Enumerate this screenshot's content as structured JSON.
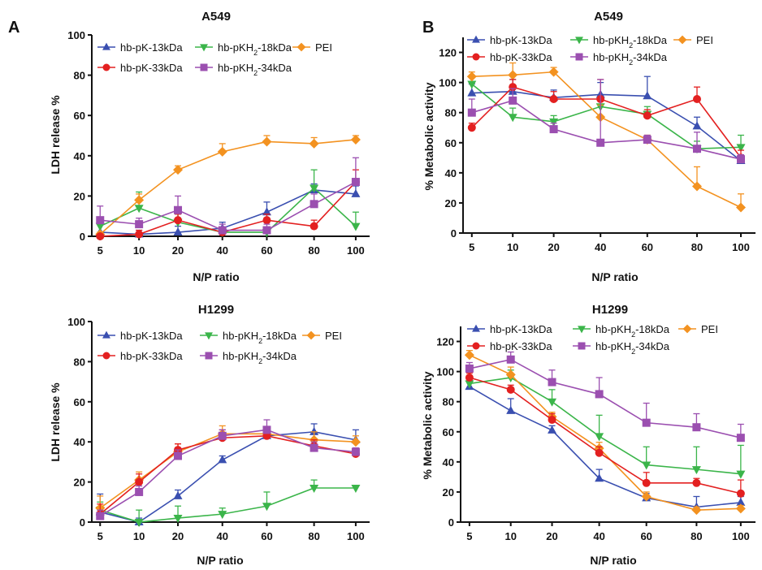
{
  "panel_letters": [
    "A",
    "B"
  ],
  "chart_data": [
    {
      "type": "line",
      "title": "A549",
      "xlabel": "N/P ratio",
      "ylabel": "LDH release %",
      "categories": [
        "5",
        "10",
        "20",
        "40",
        "60",
        "80",
        "100"
      ],
      "ylim": [
        0,
        100
      ],
      "yticks": [
        0,
        20,
        40,
        60,
        80,
        100
      ],
      "legend_columns": 3,
      "series": [
        {
          "name": "hb-pK-13kDa",
          "color": "#3a4fb0",
          "marker": "triangle-up",
          "values": [
            2,
            1,
            2,
            4,
            12,
            23,
            21
          ],
          "err": [
            4,
            2,
            3,
            3,
            5,
            3,
            4
          ]
        },
        {
          "name": "hb-pKH₂-18kDa",
          "color": "#3bb54a",
          "marker": "triangle-down",
          "values": [
            5,
            14,
            7,
            2,
            2,
            24,
            5
          ],
          "err": [
            2,
            8,
            4,
            2,
            2,
            9,
            7
          ]
        },
        {
          "name": "PEI",
          "color": "#f39220",
          "marker": "diamond",
          "values": [
            1,
            18,
            33,
            42,
            47,
            46,
            48
          ],
          "err": [
            1,
            3,
            2,
            4,
            3,
            3,
            2
          ]
        },
        {
          "name": "hb-pK-33kDa",
          "color": "#e32020",
          "marker": "circle",
          "values": [
            0,
            1,
            8,
            2,
            8,
            5,
            27
          ],
          "err": [
            1,
            2,
            3,
            2,
            3,
            3,
            6
          ]
        },
        {
          "name": "hb-pKH₂-34kDa",
          "color": "#9b4fb0",
          "marker": "square",
          "values": [
            8,
            6,
            13,
            3,
            3,
            16,
            27
          ],
          "err": [
            7,
            3,
            7,
            3,
            3,
            5,
            12
          ]
        }
      ]
    },
    {
      "type": "line",
      "title": "A549",
      "xlabel": "N/P ratio",
      "ylabel": "% Metabolic activity",
      "categories": [
        "5",
        "10",
        "20",
        "40",
        "60",
        "80",
        "100"
      ],
      "ylim": [
        0,
        130
      ],
      "yticks": [
        0,
        20,
        40,
        60,
        80,
        100,
        120
      ],
      "legend_columns": 3,
      "series": [
        {
          "name": "hb-pK-13kDa",
          "color": "#3a4fb0",
          "marker": "triangle-up",
          "values": [
            93,
            94,
            90,
            92,
            91,
            71,
            48
          ],
          "err": [
            6,
            8,
            5,
            8,
            13,
            6,
            3
          ]
        },
        {
          "name": "hb-pKH₂-18kDa",
          "color": "#3bb54a",
          "marker": "triangle-down",
          "values": [
            99,
            77,
            74,
            84,
            79,
            56,
            57
          ],
          "err": [
            5,
            6,
            4,
            6,
            5,
            5,
            8
          ]
        },
        {
          "name": "PEI",
          "color": "#f39220",
          "marker": "diamond",
          "values": [
            104,
            105,
            107,
            77,
            62,
            31,
            17
          ],
          "err": [
            3,
            8,
            3,
            8,
            3,
            13,
            9
          ]
        },
        {
          "name": "hb-pK-33kDa",
          "color": "#e32020",
          "marker": "circle",
          "values": [
            70,
            97,
            89,
            89,
            78,
            89,
            50
          ],
          "err": [
            3,
            5,
            5,
            13,
            4,
            8,
            5
          ]
        },
        {
          "name": "hb-pKH₂-34kDa",
          "color": "#9b4fb0",
          "marker": "square",
          "values": [
            80,
            88,
            69,
            60,
            62,
            56,
            49
          ],
          "err": [
            9,
            8,
            4,
            42,
            3,
            11,
            3
          ]
        }
      ]
    },
    {
      "type": "line",
      "title": "H1299",
      "xlabel": "N/P ratio",
      "ylabel": "LDH release %",
      "categories": [
        "5",
        "10",
        "20",
        "40",
        "60",
        "80",
        "100"
      ],
      "ylim": [
        0,
        100
      ],
      "yticks": [
        0,
        20,
        40,
        60,
        80,
        100
      ],
      "legend_columns": 3,
      "series": [
        {
          "name": "hb-pK-13kDa",
          "color": "#3a4fb0",
          "marker": "triangle-up",
          "values": [
            5,
            0,
            13,
            31,
            43,
            45,
            41
          ],
          "err": [
            9,
            2,
            3,
            2,
            4,
            4,
            5
          ]
        },
        {
          "name": "hb-pKH₂-18kDa",
          "color": "#3bb54a",
          "marker": "triangle-down",
          "values": [
            6,
            0,
            2,
            4,
            8,
            17,
            17
          ],
          "err": [
            4,
            6,
            6,
            3,
            7,
            4,
            1
          ]
        },
        {
          "name": "PEI",
          "color": "#f39220",
          "marker": "diamond",
          "values": [
            7,
            21,
            35,
            44,
            44,
            41,
            40
          ],
          "err": [
            6,
            4,
            4,
            4,
            3,
            4,
            3
          ]
        },
        {
          "name": "hb-pK-33kDa",
          "color": "#e32020",
          "marker": "circle",
          "values": [
            4,
            20,
            36,
            42,
            43,
            38,
            34
          ],
          "err": [
            5,
            4,
            3,
            4,
            3,
            3,
            2
          ]
        },
        {
          "name": "hb-pKH₂-34kDa",
          "color": "#9b4fb0",
          "marker": "square",
          "values": [
            3,
            15,
            33,
            43,
            46,
            37,
            35
          ],
          "err": [
            3,
            3,
            3,
            3,
            5,
            3,
            2
          ]
        }
      ]
    },
    {
      "type": "line",
      "title": "H1299",
      "xlabel": "N/P ratio",
      "ylabel": "% Metabolic activity",
      "categories": [
        "5",
        "10",
        "20",
        "40",
        "60",
        "80",
        "100"
      ],
      "ylim": [
        0,
        130
      ],
      "yticks": [
        0,
        20,
        40,
        60,
        80,
        100,
        120
      ],
      "legend_columns": 3,
      "series": [
        {
          "name": "hb-pK-13kDa",
          "color": "#3a4fb0",
          "marker": "triangle-up",
          "values": [
            90,
            74,
            61,
            29,
            16,
            10,
            13
          ],
          "err": [
            4,
            8,
            3,
            6,
            3,
            7,
            4
          ]
        },
        {
          "name": "hb-pKH₂-18kDa",
          "color": "#3bb54a",
          "marker": "triangle-down",
          "values": [
            92,
            96,
            80,
            57,
            38,
            35,
            32
          ],
          "err": [
            3,
            5,
            8,
            14,
            12,
            15,
            19
          ]
        },
        {
          "name": "PEI",
          "color": "#f39220",
          "marker": "diamond",
          "values": [
            111,
            98,
            70,
            49,
            17,
            8,
            9
          ],
          "err": [
            3,
            5,
            3,
            4,
            3,
            2,
            2
          ]
        },
        {
          "name": "hb-pK-33kDa",
          "color": "#e32020",
          "marker": "circle",
          "values": [
            96,
            88,
            68,
            46,
            26,
            26,
            19
          ],
          "err": [
            3,
            3,
            4,
            4,
            7,
            3,
            9
          ]
        },
        {
          "name": "hb-pKH₂-34kDa",
          "color": "#9b4fb0",
          "marker": "square",
          "values": [
            102,
            108,
            93,
            85,
            66,
            63,
            56
          ],
          "err": [
            4,
            5,
            8,
            11,
            13,
            9,
            9
          ]
        }
      ]
    }
  ]
}
